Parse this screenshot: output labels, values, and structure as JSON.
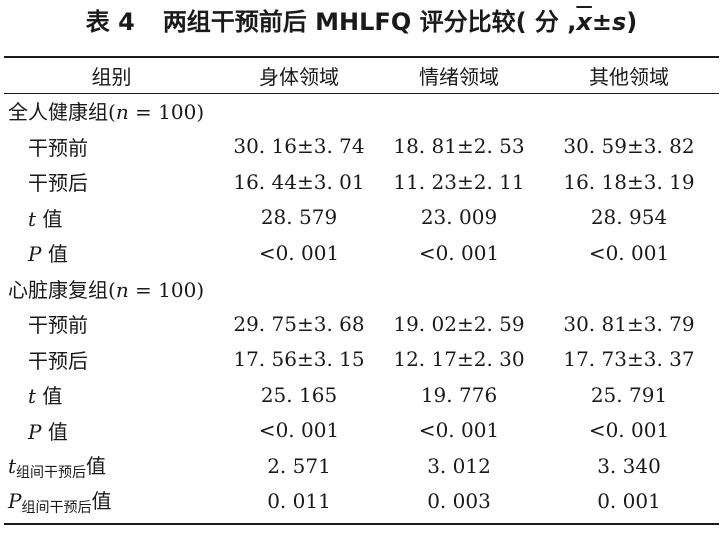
{
  "caption": {
    "table_no": "表 4",
    "title": "两组干预前后 MHLFQ 评分比较",
    "unit_open": "( 分 ,",
    "unit_x": "x",
    "unit_pm": "±",
    "unit_s": "s",
    "unit_close": ")"
  },
  "headers": [
    "组别",
    "身体领域",
    "情绪领域",
    "其他领域"
  ],
  "groups": [
    {
      "label_prefix": "全人健康组(",
      "n_symbol": "n",
      "n_value": " = 100)",
      "rows": [
        {
          "label": "干预前",
          "values": [
            "30. 16±3. 74",
            "18. 81±2. 53",
            "30. 59±3. 82"
          ]
        },
        {
          "label": "干预后",
          "values": [
            "16. 44±3. 01",
            "11. 23±2. 11",
            "16. 18±3. 19"
          ]
        },
        {
          "stat": "t",
          "suffix": " 值",
          "values": [
            "28. 579",
            "23. 009",
            "28. 954"
          ]
        },
        {
          "stat": "P",
          "suffix": " 值",
          "values": [
            "<0. 001",
            "<0. 001",
            "<0. 001"
          ]
        }
      ]
    },
    {
      "label_prefix": "心脏康复组(",
      "n_symbol": "n",
      "n_value": " = 100)",
      "rows": [
        {
          "label": "干预前",
          "values": [
            "29. 75±3. 68",
            "19. 02±2. 59",
            "30. 81±3. 79"
          ]
        },
        {
          "label": "干预后",
          "values": [
            "17. 56±3. 15",
            "12. 17±2. 30",
            "17. 73±3. 37"
          ]
        },
        {
          "stat": "t",
          "suffix": " 值",
          "values": [
            "25. 165",
            "19. 776",
            "25. 791"
          ]
        },
        {
          "stat": "P",
          "suffix": " 值",
          "values": [
            "<0. 001",
            "<0. 001",
            "<0. 001"
          ]
        }
      ]
    }
  ],
  "between": [
    {
      "stat": "t",
      "sub": "组间干预后",
      "suffix": "值",
      "values": [
        "2. 571",
        "3. 012",
        "3. 340"
      ]
    },
    {
      "stat": "P",
      "sub": "组间干预后",
      "suffix": "值",
      "values": [
        "0. 011",
        "0. 003",
        "0. 001"
      ]
    }
  ]
}
